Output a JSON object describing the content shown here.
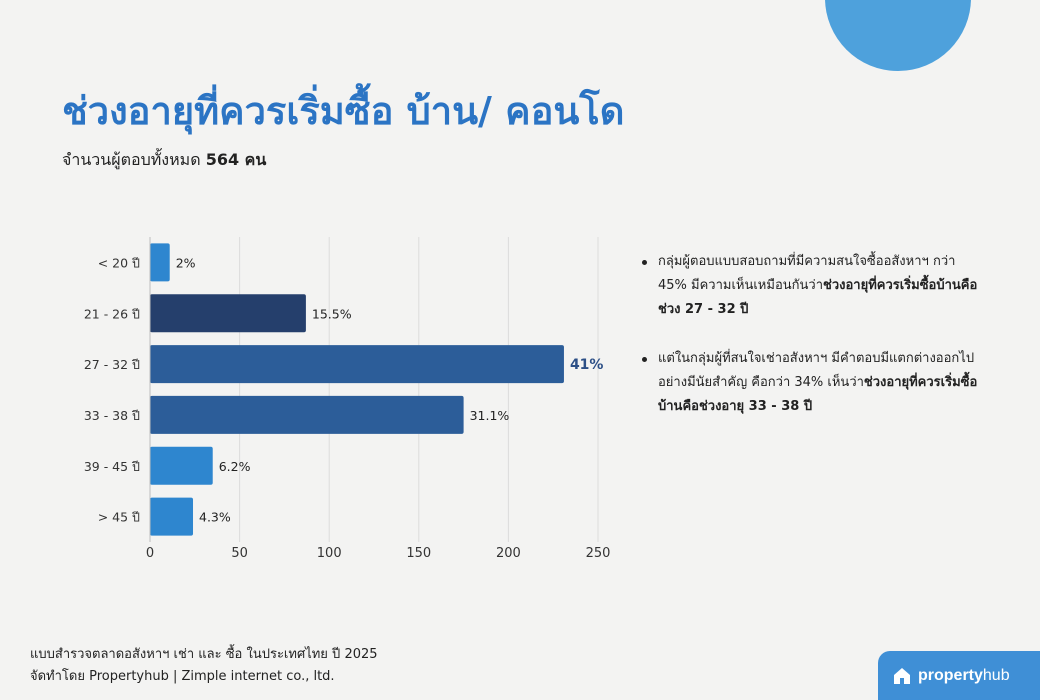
{
  "header": {
    "title": "ช่วงอายุที่ควรเริ่มซื้อ บ้าน/ คอนโด",
    "subtitle_prefix": "จำนวนผู้ตอบทั้งหมด",
    "subtitle_count": "564 คน"
  },
  "chart_data": {
    "type": "bar",
    "orientation": "horizontal",
    "categories": [
      "< 20 ปี",
      "21 - 26 ปี",
      "27 - 32 ปี",
      "33 - 38 ปี",
      "39 - 45 ปี",
      "> 45 ปี"
    ],
    "values": [
      11,
      87,
      231,
      175,
      35,
      24
    ],
    "data_labels": [
      "2%",
      "15.5%",
      "41%",
      "31.1%",
      "6.2%",
      "4.3%"
    ],
    "colors": [
      "#2e86cf",
      "#253f6c",
      "#2c5d99",
      "#2c5d99",
      "#2e86cf",
      "#2e86cf"
    ],
    "highlight_label_color": "#2c4f86",
    "xlim": [
      0,
      250
    ],
    "xticks": [
      0,
      50,
      100,
      150,
      200,
      250
    ],
    "grid": true,
    "title": "",
    "xlabel": "",
    "ylabel": ""
  },
  "bullets": [
    {
      "plain": "กลุ่มผู้ตอบแบบสอบถามที่มีความสนใจซื้ออสังหาฯ กว่า 45% มีความเห็นเหมือนกันว่า",
      "bold": "ช่วงอายุที่ควรเริ่มซื้อบ้านคือช่วง 27 - 32 ปี"
    },
    {
      "plain": "แต่ในกลุ่มผู้ที่สนใจเช่าอสังหาฯ มีคำตอบมีแตกต่างออกไปอย่างมีนัยสำคัญ คือกว่า 34% เห็นว่า",
      "bold": "ช่วงอายุที่ควรเริ่มซื้อบ้านคือช่วงอายุ 33 - 38 ปี"
    }
  ],
  "footer": {
    "line1": "แบบสำรวจตลาดอสังหาฯ เช่า และ ซื้อ ในประเทศไทย ปี 2025",
    "line2": "จัดทำโดย Propertyhub | Zimple internet co., ltd."
  },
  "brand": {
    "name_bold": "property",
    "name_light": "hub",
    "icon": "house-logo-icon"
  },
  "colors": {
    "title": "#2b74c4",
    "accent_circle": "#4ea1dc",
    "brand_bg": "#3f8fd6",
    "background": "#f3f3f2"
  }
}
